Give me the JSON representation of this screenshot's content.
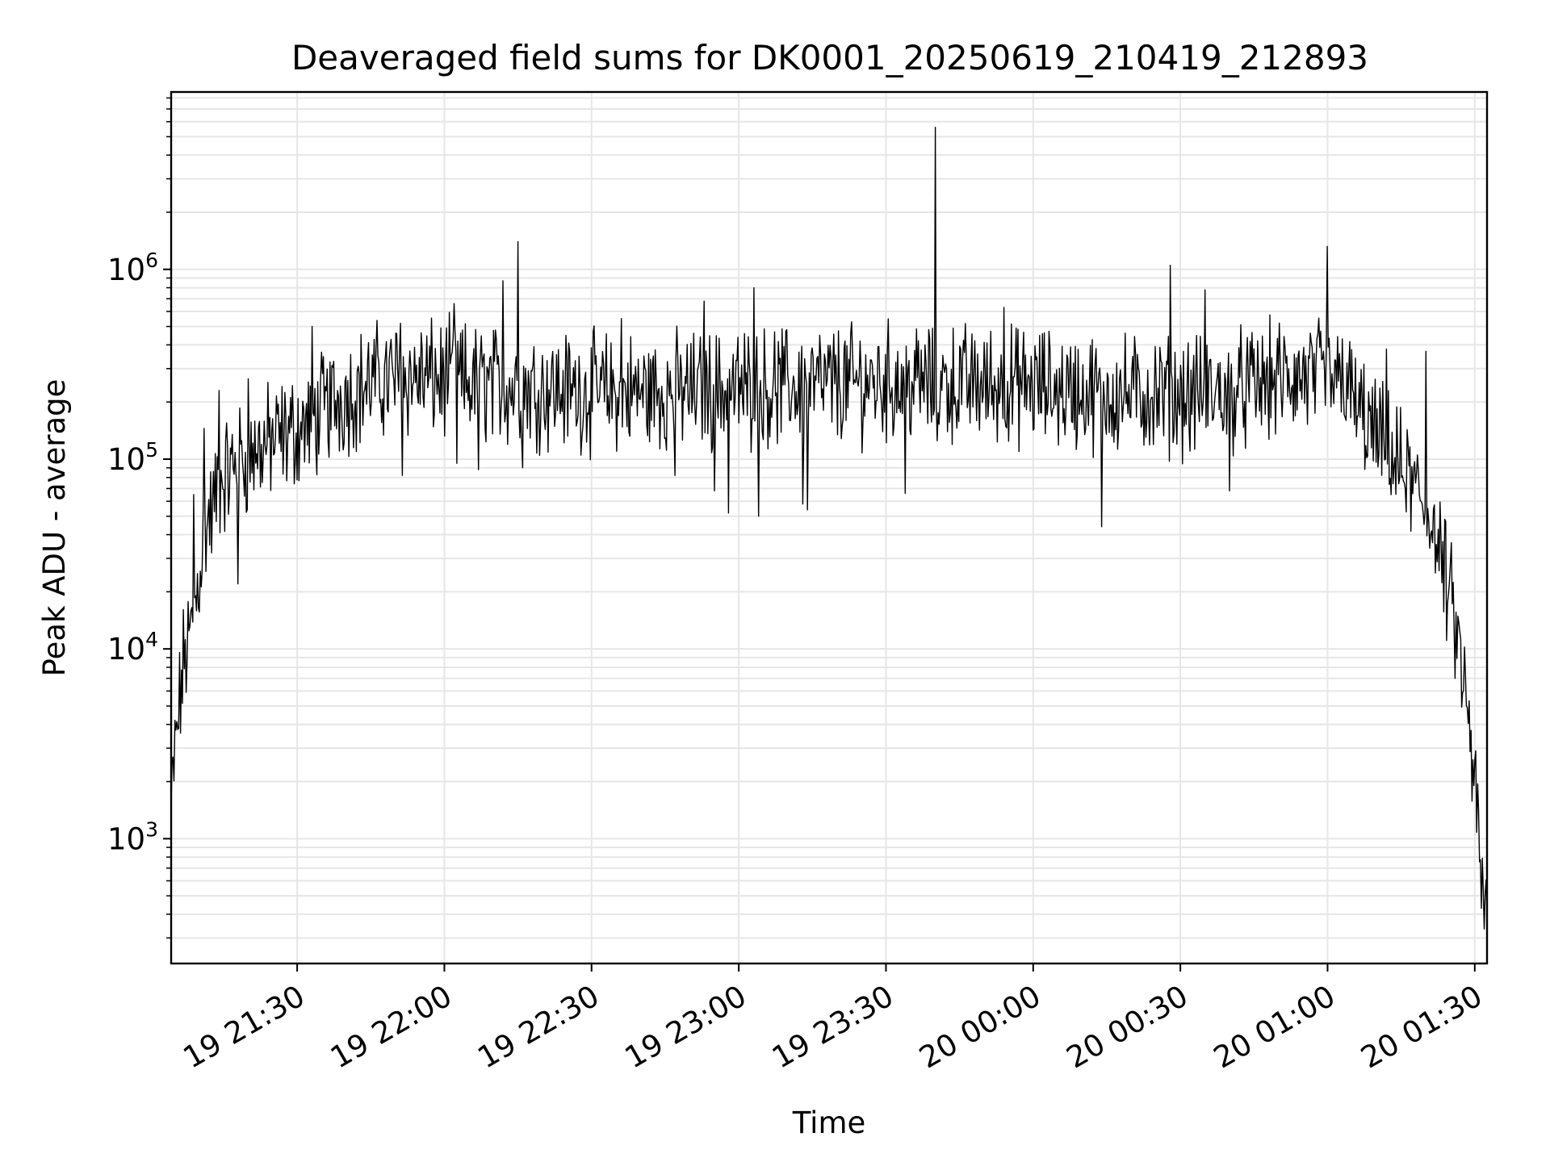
{
  "chart_data": {
    "type": "line",
    "title": "Deaveraged field sums for DK0001_20250619_210419_212893",
    "xlabel": "Time",
    "ylabel": "Peak ADU - average",
    "yscale": "log",
    "grid": true,
    "series_color": "#000000",
    "grid_color": "#e6e6e6",
    "xlim": [
      "2025-06-19 21:04:19",
      "2025-06-20 01:32:30"
    ],
    "ylim": [
      220,
      8600000
    ],
    "x_ticks": [
      {
        "value": "2025-06-19 21:30",
        "label": "19 21:30"
      },
      {
        "value": "2025-06-19 22:00",
        "label": "19 22:00"
      },
      {
        "value": "2025-06-19 22:30",
        "label": "19 22:30"
      },
      {
        "value": "2025-06-19 23:00",
        "label": "19 23:00"
      },
      {
        "value": "2025-06-19 23:30",
        "label": "19 23:30"
      },
      {
        "value": "2025-06-20 00:00",
        "label": "20 00:00"
      },
      {
        "value": "2025-06-20 00:30",
        "label": "20 00:30"
      },
      {
        "value": "2025-06-20 01:00",
        "label": "20 01:00"
      },
      {
        "value": "2025-06-20 01:30",
        "label": "20 01:30"
      }
    ],
    "y_ticks": [
      {
        "value": 1000,
        "base": "10",
        "exp": "3"
      },
      {
        "value": 10000,
        "base": "10",
        "exp": "4"
      },
      {
        "value": 100000,
        "base": "10",
        "exp": "5"
      },
      {
        "value": 1000000,
        "base": "10",
        "exp": "6"
      }
    ],
    "points": [
      [
        "2025-06-19 21:04:19",
        1400
      ],
      [
        "2025-06-19 21:05:00",
        2600
      ],
      [
        "2025-06-19 21:06:00",
        5000
      ],
      [
        "2025-06-19 21:07:00",
        9000
      ],
      [
        "2025-06-19 21:08:00",
        11000
      ],
      [
        "2025-06-19 21:09:00",
        15000
      ],
      [
        "2025-06-19 21:10:00",
        25000
      ],
      [
        "2025-06-19 21:11:00",
        40000
      ],
      [
        "2025-06-19 21:12:00",
        48000
      ],
      [
        "2025-06-19 21:13:00",
        55000
      ],
      [
        "2025-06-19 21:14:00",
        75000
      ],
      [
        "2025-06-19 21:16:00",
        85000
      ],
      [
        "2025-06-19 21:18:00",
        95000
      ],
      [
        "2025-06-19 21:20:00",
        105000
      ],
      [
        "2025-06-19 21:24:00",
        120000
      ],
      [
        "2025-06-19 21:28:00",
        135000
      ],
      [
        "2025-06-19 21:32:00",
        150000
      ],
      [
        "2025-06-19 21:36:00",
        190000
      ],
      [
        "2025-06-19 21:40:00",
        220000
      ],
      [
        "2025-06-19 21:45:00",
        250000
      ],
      [
        "2025-06-19 21:50:00",
        270000
      ],
      [
        "2025-06-19 21:55:00",
        270000
      ],
      [
        "2025-06-19 22:00:00",
        260000
      ],
      [
        "2025-06-19 22:10:00",
        245000
      ],
      [
        "2025-06-19 22:20:00",
        235000
      ],
      [
        "2025-06-19 22:30:00",
        225000
      ],
      [
        "2025-06-19 22:45:00",
        225000
      ],
      [
        "2025-06-19 23:00:00",
        235000
      ],
      [
        "2025-06-19 23:15:00",
        245000
      ],
      [
        "2025-06-19 23:30:00",
        255000
      ],
      [
        "2025-06-19 23:45:00",
        250000
      ],
      [
        "2025-06-20 00:00:00",
        240000
      ],
      [
        "2025-06-20 00:15:00",
        220000
      ],
      [
        "2025-06-20 00:30:00",
        215000
      ],
      [
        "2025-06-20 00:40:00",
        225000
      ],
      [
        "2025-06-20 00:50:00",
        260000
      ],
      [
        "2025-06-20 01:00:00",
        270000
      ],
      [
        "2025-06-20 01:04:00",
        230000
      ],
      [
        "2025-06-20 01:08:00",
        150000
      ],
      [
        "2025-06-20 01:12:00",
        110000
      ],
      [
        "2025-06-20 01:16:00",
        80000
      ],
      [
        "2025-06-20 01:20:00",
        55000
      ],
      [
        "2025-06-20 01:23:00",
        30000
      ],
      [
        "2025-06-20 01:25:00",
        18000
      ],
      [
        "2025-06-20 01:27:00",
        9000
      ],
      [
        "2025-06-20 01:29:00",
        3500
      ],
      [
        "2025-06-20 01:30:30",
        1300
      ],
      [
        "2025-06-20 01:31:30",
        500
      ],
      [
        "2025-06-20 01:32:30",
        360
      ]
    ],
    "spikes": [
      [
        "2025-06-19 21:09:00",
        65000
      ],
      [
        "2025-06-19 21:11:00",
        145000
      ],
      [
        "2025-06-19 21:14:00",
        230000
      ],
      [
        "2025-06-19 21:18:00",
        22000
      ],
      [
        "2025-06-19 21:20:00",
        265000
      ],
      [
        "2025-06-19 21:33:00",
        500000
      ],
      [
        "2025-06-19 21:51:00",
        520000
      ],
      [
        "2025-06-19 21:51:30",
        82000
      ],
      [
        "2025-06-19 22:02:00",
        660000
      ],
      [
        "2025-06-19 22:02:30",
        95000
      ],
      [
        "2025-06-19 22:07:00",
        88000
      ],
      [
        "2025-06-19 22:12:00",
        870000
      ],
      [
        "2025-06-19 22:15:00",
        1400000
      ],
      [
        "2025-06-19 22:16:00",
        90000
      ],
      [
        "2025-06-19 22:36:00",
        550000
      ],
      [
        "2025-06-19 22:47:00",
        82000
      ],
      [
        "2025-06-19 22:53:00",
        680000
      ],
      [
        "2025-06-19 22:55:00",
        68000
      ],
      [
        "2025-06-19 22:58:00",
        52000
      ],
      [
        "2025-06-19 23:03:00",
        800000
      ],
      [
        "2025-06-19 23:04:00",
        50000
      ],
      [
        "2025-06-19 23:13:00",
        58000
      ],
      [
        "2025-06-19 23:14:00",
        54000
      ],
      [
        "2025-06-19 23:34:00",
        66000
      ],
      [
        "2025-06-19 23:40:00",
        5600000
      ],
      [
        "2025-06-19 23:40:30",
        125000
      ],
      [
        "2025-06-19 23:54:00",
        630000
      ],
      [
        "2025-06-20 00:14:00",
        44000
      ],
      [
        "2025-06-20 00:28:00",
        1050000
      ],
      [
        "2025-06-20 00:32:00",
        110000
      ],
      [
        "2025-06-20 00:35:00",
        780000
      ],
      [
        "2025-06-20 00:40:00",
        68000
      ],
      [
        "2025-06-20 01:00:00",
        1320000
      ],
      [
        "2025-06-20 01:03:00",
        430000
      ],
      [
        "2025-06-20 01:12:00",
        380000
      ],
      [
        "2025-06-20 01:13:00",
        65000
      ],
      [
        "2025-06-20 01:20:00",
        370000
      ],
      [
        "2025-06-20 01:21:00",
        40000
      ]
    ]
  }
}
